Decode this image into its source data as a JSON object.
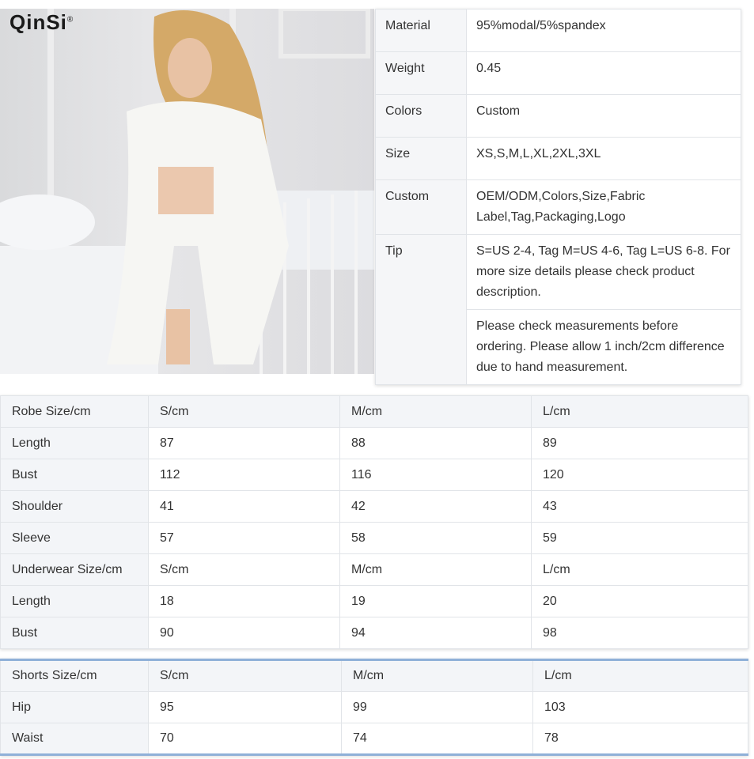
{
  "brand": {
    "logo": "QinSi",
    "mark": "®"
  },
  "specs": [
    {
      "label": "Material",
      "value": "95%modal/5%spandex"
    },
    {
      "label": "Weight",
      "value": "0.45"
    },
    {
      "label": "Colors",
      "value": "Custom"
    },
    {
      "label": "Size",
      "value": "XS,S,M,L,XL,2XL,3XL"
    },
    {
      "label": "Custom",
      "value": "OEM/ODM,Colors,Size,Fabric Label,Tag,Packaging,Logo"
    },
    {
      "label": "Tip",
      "value": "S=US 2-4, Tag M=US 4-6, Tag L=US 6-8. For more size details please check product description."
    },
    {
      "label": "",
      "value": "Please check measurements before ordering. Please allow 1 inch/2cm difference due to hand measurement."
    }
  ],
  "robe_table": [
    [
      "Robe Size/cm",
      "S/cm",
      "M/cm",
      "L/cm"
    ],
    [
      "Length",
      "87",
      "88",
      "89"
    ],
    [
      "Bust",
      "112",
      "116",
      "120"
    ],
    [
      "Shoulder",
      "41",
      "42",
      "43"
    ],
    [
      "Sleeve",
      "57",
      "58",
      "59"
    ],
    [
      "Underwear Size/cm",
      "S/cm",
      "M/cm",
      "L/cm"
    ],
    [
      "Length",
      "18",
      "19",
      "20"
    ],
    [
      "Bust",
      "90",
      "94",
      "98"
    ]
  ],
  "shorts_table": [
    [
      "Shorts Size/cm",
      "S/cm",
      "M/cm",
      "L/cm"
    ],
    [
      "Hip",
      "95",
      "99",
      "103"
    ],
    [
      "Waist",
      "70",
      "74",
      "78"
    ]
  ]
}
